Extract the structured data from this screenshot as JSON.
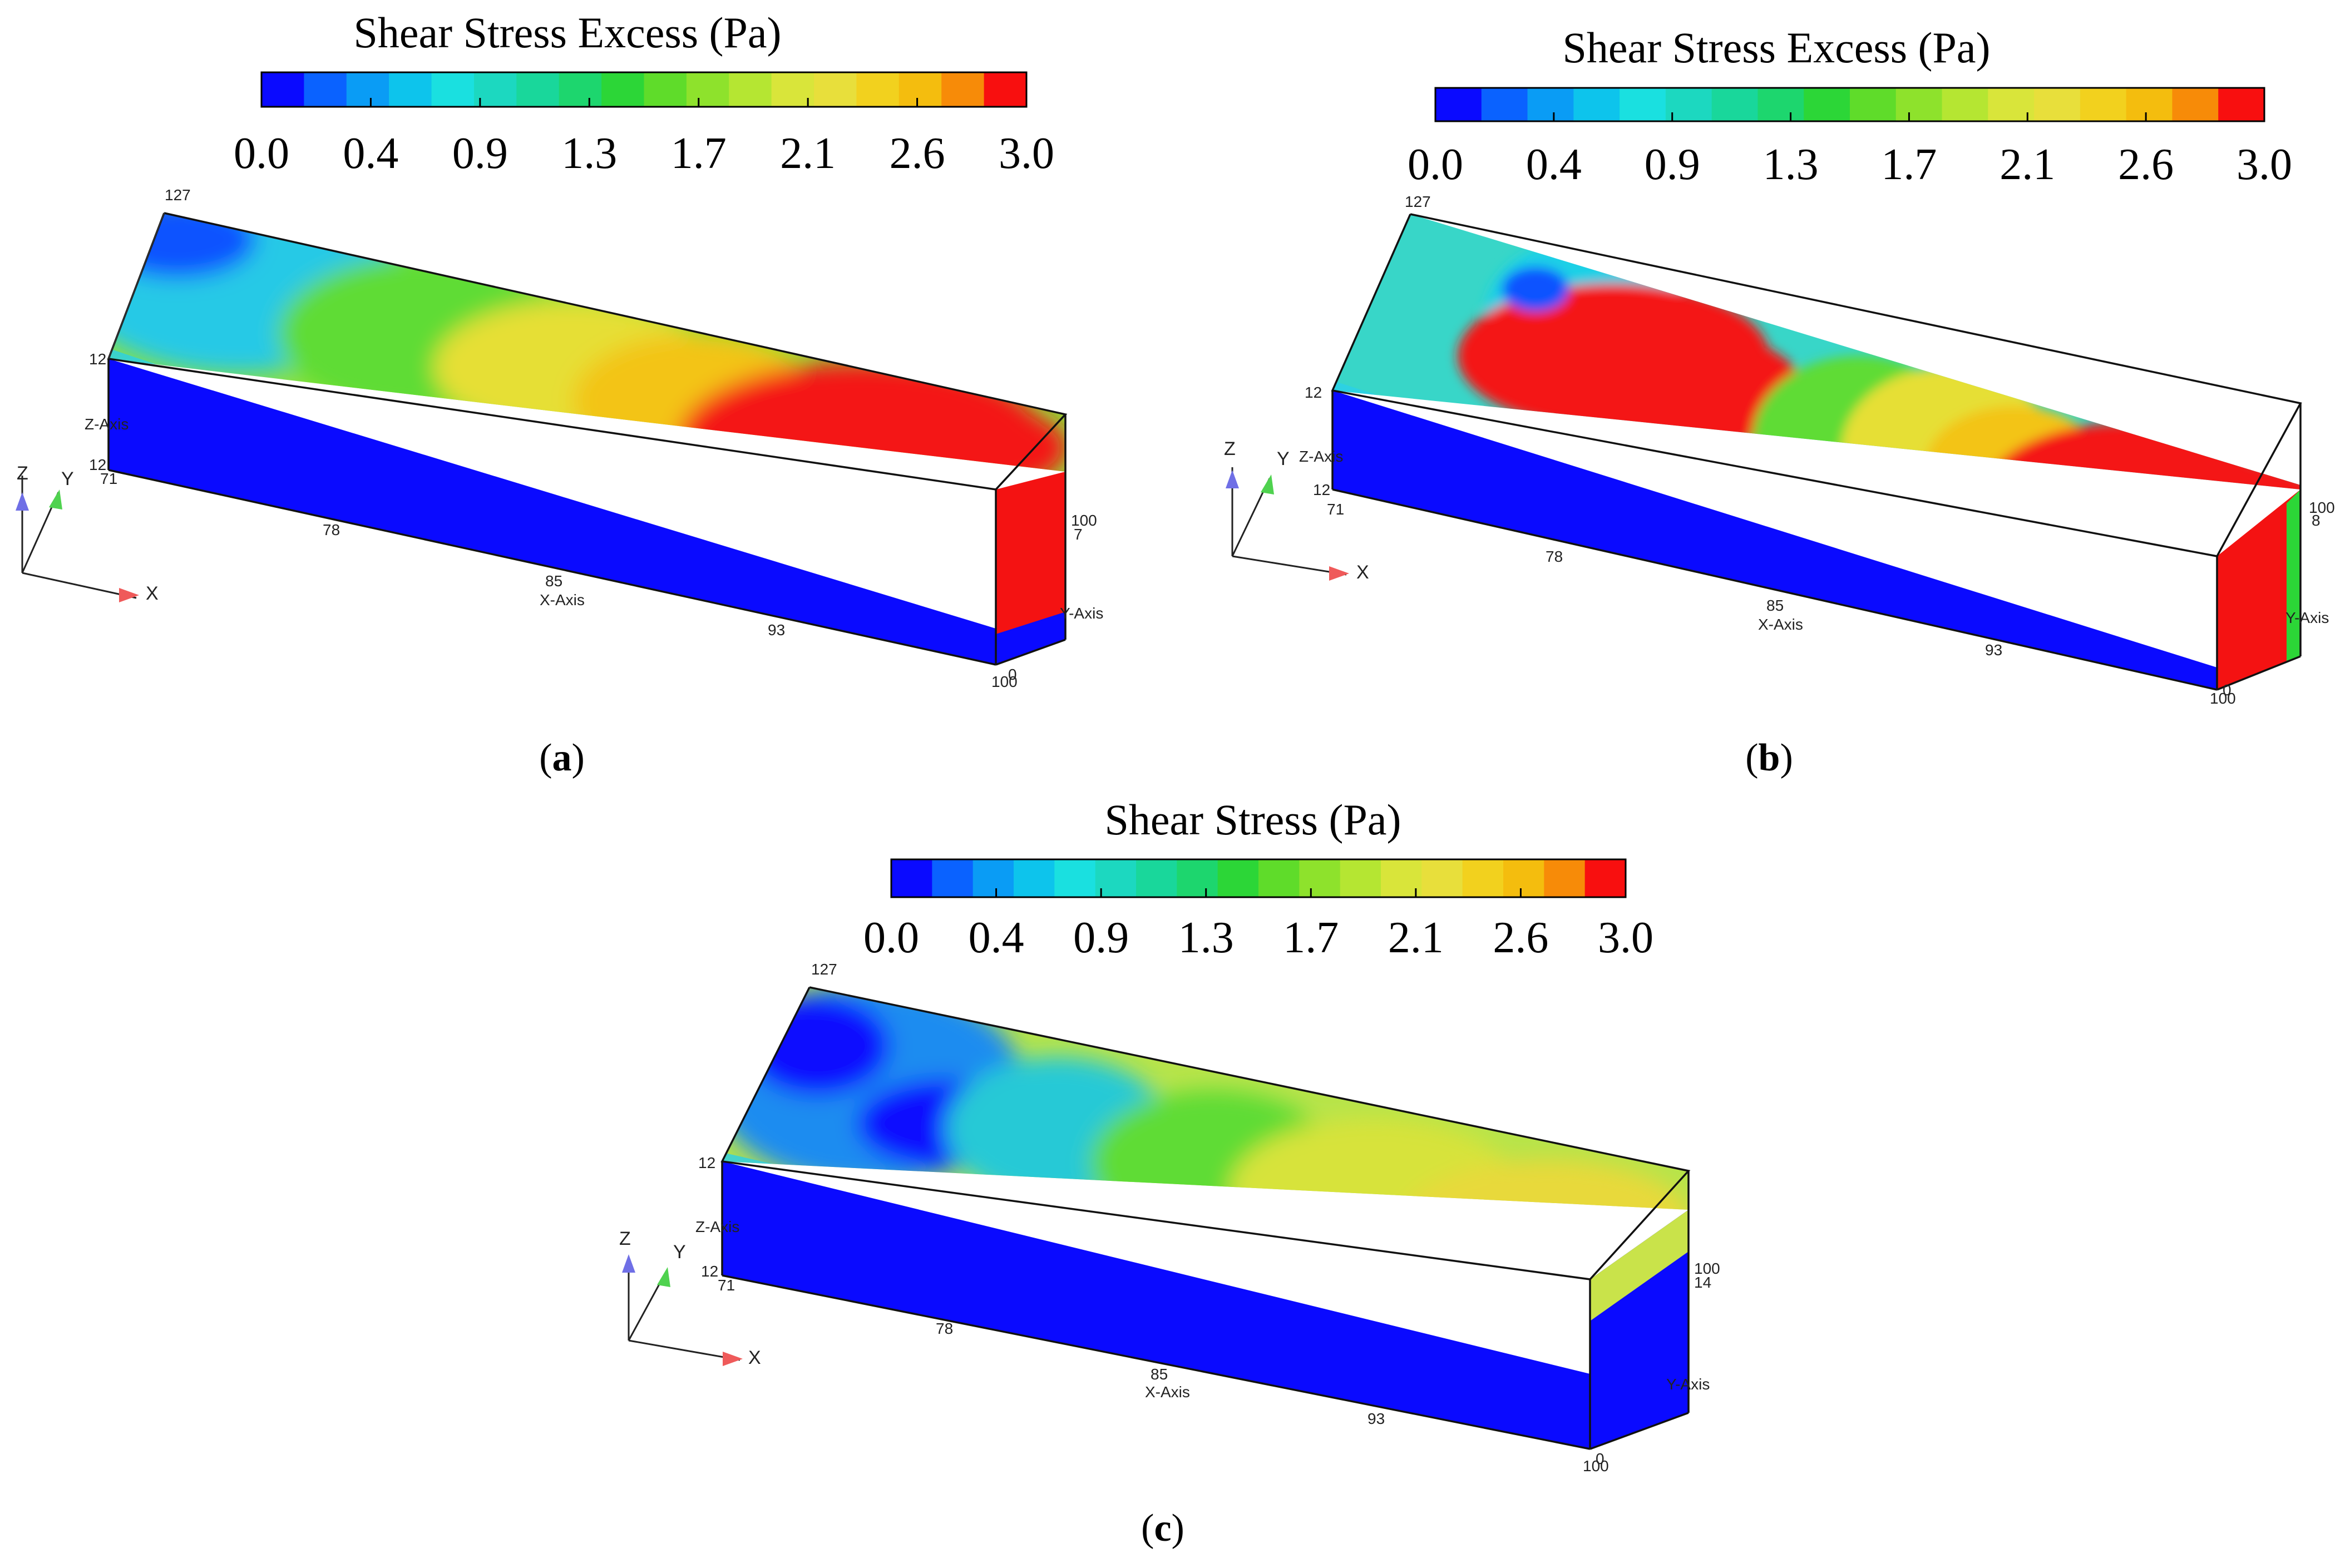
{
  "colorscale": {
    "ticks": [
      "0.0",
      "0.4",
      "0.9",
      "1.3",
      "1.7",
      "2.1",
      "2.6",
      "3.0"
    ],
    "colors": [
      "#0a0aff",
      "#0a62ff",
      "#0a9cf5",
      "#0dc4ec",
      "#1ae0e0",
      "#1cd8c0",
      "#19d79b",
      "#1dd66e",
      "#2cd637",
      "#5fdc2a",
      "#8ee22c",
      "#b5e632",
      "#d9e53a",
      "#e8df3b",
      "#f2d11e",
      "#f4bd0e",
      "#f78b08",
      "#f80f0f"
    ],
    "low_color": "#0a0aff",
    "high_color": "#ff0000"
  },
  "panels": [
    {
      "id": "a",
      "colorbar_title": "Shear Stress Excess (Pa)",
      "caption_open": "(",
      "caption_letter": "a",
      "caption_close": ")",
      "axis": {
        "x_title": "X-Axis",
        "y_title": "Y-Axis",
        "z_title": "Z-Axis",
        "x_ticks": [
          "71",
          "78",
          "85",
          "93",
          "100"
        ],
        "y_ticks": [
          "0",
          "7"
        ],
        "z_ticks": [
          "127",
          "12",
          "12"
        ],
        "y_end_label": "100",
        "triad": {
          "z": "Z",
          "y": "Y",
          "x": "X"
        }
      }
    },
    {
      "id": "b",
      "colorbar_title": "Shear Stress Excess (Pa)",
      "caption_open": "(",
      "caption_letter": "b",
      "caption_close": ")",
      "axis": {
        "x_title": "X-Axis",
        "y_title": "Y-Axis",
        "z_title": "Z-Axis",
        "x_ticks": [
          "71",
          "78",
          "85",
          "93",
          "100"
        ],
        "y_ticks": [
          "0",
          "8"
        ],
        "z_ticks": [
          "127",
          "12",
          "12"
        ],
        "y_end_label": "100",
        "triad": {
          "z": "Z",
          "y": "Y",
          "x": "X"
        }
      }
    },
    {
      "id": "c",
      "colorbar_title": "Shear Stress (Pa)",
      "caption_open": "(",
      "caption_letter": "c",
      "caption_close": ")",
      "axis": {
        "x_title": "X-Axis",
        "y_title": "Y-Axis",
        "z_title": "Z-Axis",
        "x_ticks": [
          "71",
          "78",
          "85",
          "93",
          "100"
        ],
        "y_ticks": [
          "0",
          "14"
        ],
        "z_ticks": [
          "127",
          "12",
          "12"
        ],
        "y_end_label": "100",
        "triad": {
          "z": "Z",
          "y": "Y",
          "x": "X"
        }
      }
    }
  ]
}
